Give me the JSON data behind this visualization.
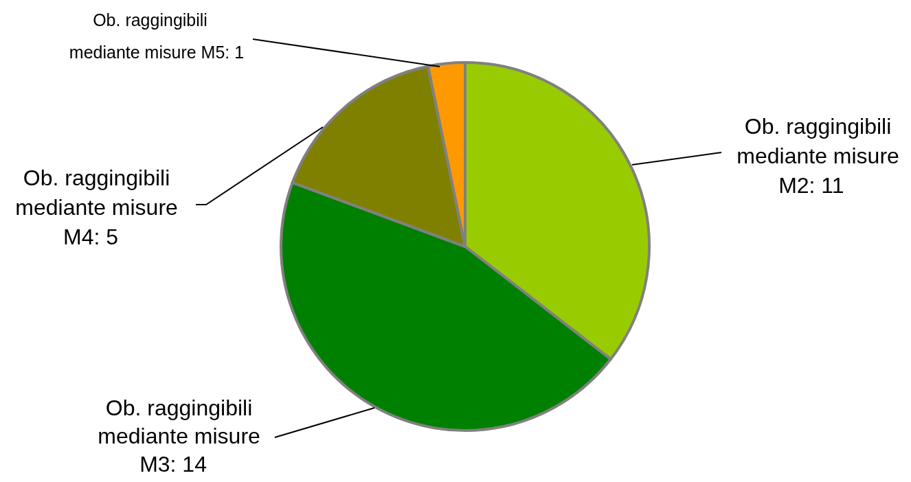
{
  "chart_data": {
    "type": "pie",
    "categories": [
      "Ob. raggingibili mediante misure M2",
      "Ob. raggingibili mediante misure M3",
      "Ob. raggingibili mediante misure M4",
      "Ob. raggingibili mediante misure M5"
    ],
    "values": [
      11,
      14,
      5,
      1
    ],
    "colors": [
      "#99cc00",
      "#008000",
      "#808000",
      "#ff9900"
    ],
    "value_labels": [
      ": 11",
      ": 14",
      ": 5",
      ": 1"
    ]
  }
}
